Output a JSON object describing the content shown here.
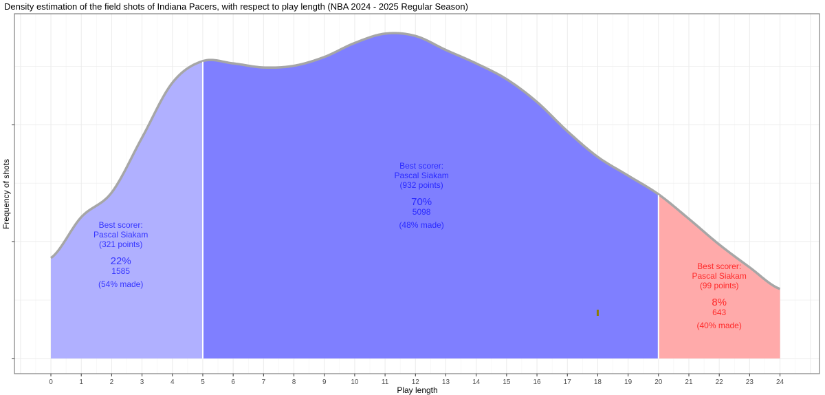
{
  "chart_data": {
    "type": "area",
    "title": "Density estimation of the field shots of Indiana Pacers, with respect to play length (NBA 2024 - 2025 Regular Season)",
    "xlabel": "Play length",
    "ylabel": "Frequency of shots",
    "xlim": [
      -1.2,
      25.3
    ],
    "ylim": [
      -0.0026,
      0.059
    ],
    "x_ticks": [
      "0",
      "1",
      "2",
      "3",
      "4",
      "5",
      "6",
      "7",
      "8",
      "9",
      "10",
      "11",
      "12",
      "13",
      "14",
      "15",
      "16",
      "17",
      "18",
      "19",
      "20",
      "21",
      "22",
      "23",
      "24"
    ],
    "y_tick_values": [
      0,
      0.02,
      0.04
    ],
    "grid": true,
    "density": {
      "x": [
        0,
        1,
        2,
        3,
        4,
        5,
        6,
        7,
        8,
        9,
        10,
        11,
        12,
        13,
        14,
        15,
        16,
        17,
        18,
        19,
        20,
        21,
        22,
        23,
        24
      ],
      "y": [
        0.0172,
        0.0242,
        0.0284,
        0.0378,
        0.0472,
        0.0509,
        0.0505,
        0.0498,
        0.0501,
        0.0516,
        0.054,
        0.0556,
        0.0552,
        0.0528,
        0.0505,
        0.0478,
        0.0439,
        0.0389,
        0.0345,
        0.0313,
        0.0281,
        0.0239,
        0.0195,
        0.0156,
        0.0119
      ]
    },
    "segments": [
      {
        "range": [
          0,
          5
        ],
        "color": "#b0b0ff",
        "text_color": "#3535ff",
        "best_label": "Best scorer:",
        "player": "Pascal Siakam",
        "points": "(321 points)",
        "share": "22%",
        "shots": "1585",
        "made": "(54% made)"
      },
      {
        "range": [
          5,
          20
        ],
        "color": "#7f7fff",
        "text_color": "#2a2aff",
        "best_label": "Best scorer:",
        "player": "Pascal Siakam",
        "points": "(932 points)",
        "share": "70%",
        "shots": "5098",
        "made": "(48% made)"
      },
      {
        "range": [
          20,
          24
        ],
        "color": "#ffaaaa",
        "text_color": "#ff2a2a",
        "best_label": "Best scorer:",
        "player": "Pascal Siakam",
        "points": "(99 points)",
        "share": "8%",
        "shots": "643",
        "made": "(40% made)"
      }
    ],
    "marker": {
      "x": 18,
      "color": "#8b7d00"
    }
  }
}
